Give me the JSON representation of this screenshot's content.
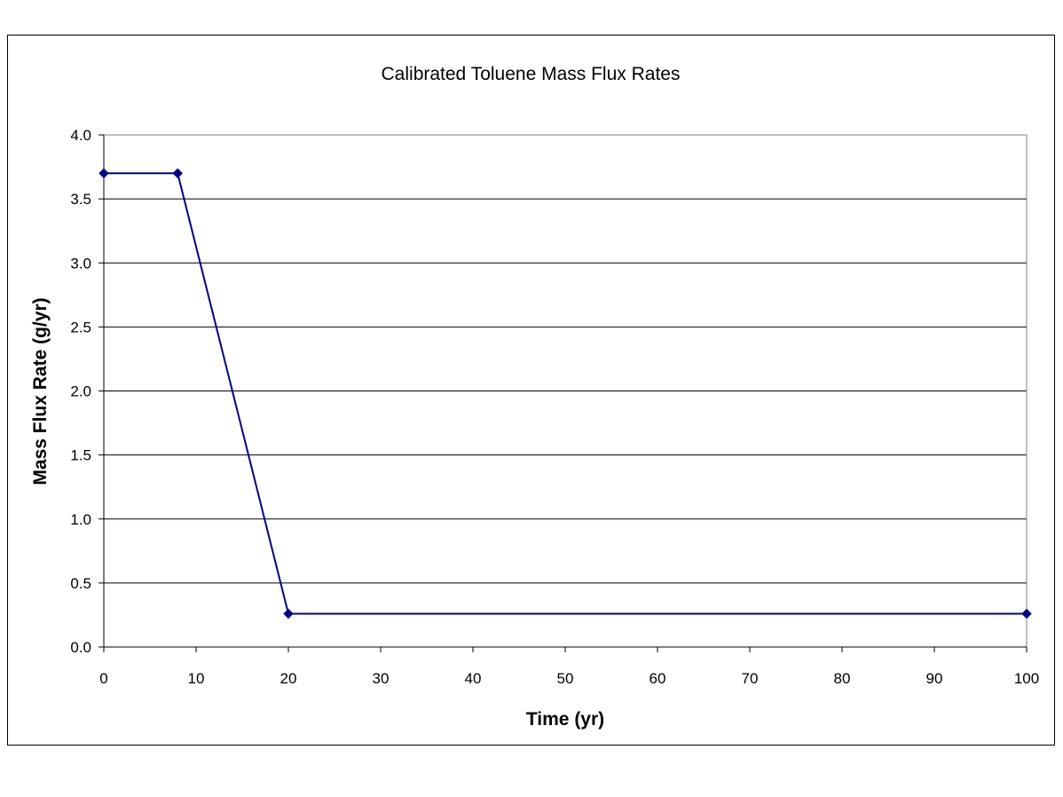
{
  "chart_data": {
    "type": "line",
    "title": "Calibrated Toluene Mass Flux Rates",
    "xlabel": "Time (yr)",
    "ylabel": "Mass Flux Rate (g/yr)",
    "xlim": [
      0,
      100
    ],
    "ylim": [
      0,
      4.0
    ],
    "xticks": [
      "0",
      "10",
      "20",
      "30",
      "40",
      "50",
      "60",
      "70",
      "80",
      "90",
      "100"
    ],
    "yticks": [
      "0.0",
      "0.5",
      "1.0",
      "1.5",
      "2.0",
      "2.5",
      "3.0",
      "3.5",
      "4.0"
    ],
    "grid": "horizontal",
    "legend": "none",
    "series": [
      {
        "color": "#000080",
        "marker": "diamond",
        "x": [
          0,
          8,
          20,
          100
        ],
        "y": [
          3.7,
          3.7,
          0.26,
          0.26
        ]
      }
    ]
  }
}
